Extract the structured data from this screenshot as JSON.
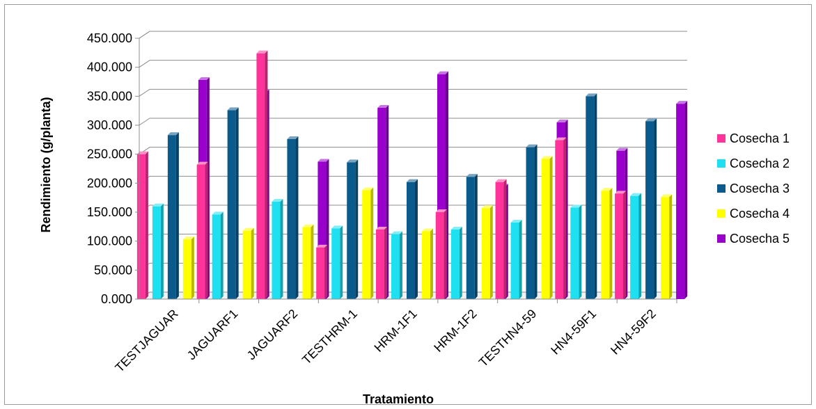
{
  "chart_data": {
    "type": "bar",
    "title": "",
    "xlabel": "Tratamiento",
    "ylabel": "Rendimiento  (g/planta)",
    "ylim": [
      0,
      450
    ],
    "yticks": [
      "0.000",
      "50.000",
      "100.000",
      "150.000",
      "200.000",
      "250.000",
      "300.000",
      "350.000",
      "400.000",
      "450.000"
    ],
    "categories": [
      "TESTJAGUAR",
      "JAGUARF1",
      "JAGUARF2",
      "TESTHRM-1",
      "HRM-1F1",
      "HRM-1F2",
      "TESTHN4-59",
      "HN4-59F1",
      "HN4-59F2"
    ],
    "series": [
      {
        "name": "Cosecha 1",
        "color": "#ff3399",
        "values": [
          250,
          232,
          424,
          89,
          120,
          150,
          202,
          274,
          182
        ]
      },
      {
        "name": "Cosecha 2",
        "color": "#1fe0f0",
        "values": [
          160,
          146,
          168,
          122,
          112,
          120,
          132,
          158,
          178
        ]
      },
      {
        "name": "Cosecha 3",
        "color": "#0a5a8c",
        "values": [
          283,
          326,
          276,
          236,
          202,
          211,
          262,
          350,
          307
        ]
      },
      {
        "name": "Cosecha 4",
        "color": "#ffff00",
        "values": [
          103,
          118,
          124,
          188,
          117,
          157,
          242,
          187,
          176
        ]
      },
      {
        "name": "Cosecha 5",
        "color": "#9900cc",
        "values": [
          378,
          357,
          237,
          330,
          388,
          194,
          305,
          256,
          337
        ]
      }
    ],
    "grid": true,
    "legend_position": "right"
  }
}
